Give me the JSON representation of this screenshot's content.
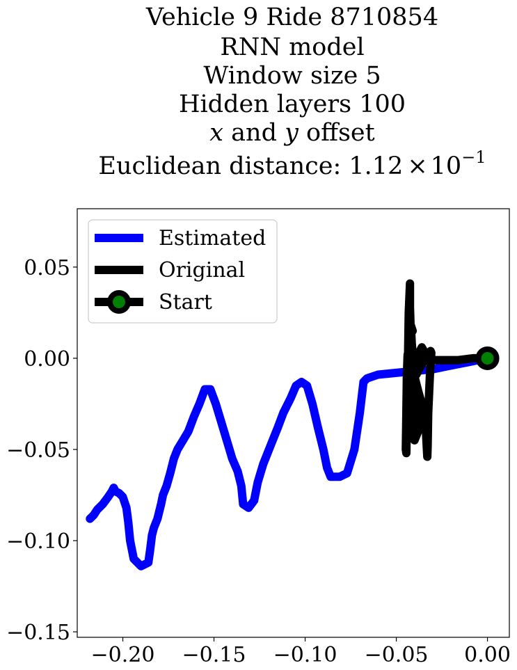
{
  "chart_data": {
    "type": "line",
    "title_lines": [
      {
        "text": "Vehicle 9 Ride 8710854"
      },
      {
        "text": "RNN model"
      },
      {
        "text": "Window size 5"
      },
      {
        "text": "Hidden layers 100"
      },
      {
        "text_var1": "x",
        "text_mid": " and ",
        "text_var2": "y",
        "text_tail": " offset"
      },
      {
        "text": "Euclidean distance: 1.12",
        "times": "×",
        "base": "10",
        "exponent": "−1"
      }
    ],
    "xlim": [
      -0.225,
      0.012
    ],
    "ylim": [
      -0.153,
      0.082
    ],
    "xticks": [
      {
        "value": -0.2,
        "label": "−0.20"
      },
      {
        "value": -0.15,
        "label": "−0.15"
      },
      {
        "value": -0.1,
        "label": "−0.10"
      },
      {
        "value": -0.05,
        "label": "−0.05"
      },
      {
        "value": 0.0,
        "label": "0.00"
      }
    ],
    "yticks": [
      {
        "value": 0.05,
        "label": "0.05"
      },
      {
        "value": 0.0,
        "label": "0.00"
      },
      {
        "value": -0.05,
        "label": "−0.05"
      },
      {
        "value": -0.1,
        "label": "−0.10"
      },
      {
        "value": -0.15,
        "label": "−0.15"
      }
    ],
    "grid": false,
    "legend_position": "top-left",
    "legend": [
      {
        "label": "Estimated",
        "color": "#0000ff",
        "marker": false
      },
      {
        "label": "Original",
        "color": "#000000",
        "marker": false
      },
      {
        "label": "Start",
        "color": "#000000",
        "marker": true,
        "marker_face": "#008000"
      }
    ],
    "series": [
      {
        "name": "Estimated",
        "color": "#0000ff",
        "points": [
          [
            0.0,
            0.0
          ],
          [
            -0.01,
            -0.002
          ],
          [
            -0.02,
            -0.004
          ],
          [
            -0.03,
            -0.006
          ],
          [
            -0.04,
            -0.007
          ],
          [
            -0.05,
            -0.008
          ],
          [
            -0.06,
            -0.009
          ],
          [
            -0.066,
            -0.011
          ],
          [
            -0.068,
            -0.013
          ],
          [
            -0.07,
            -0.03
          ],
          [
            -0.073,
            -0.05
          ],
          [
            -0.077,
            -0.063
          ],
          [
            -0.081,
            -0.065
          ],
          [
            -0.086,
            -0.065
          ],
          [
            -0.088,
            -0.06
          ],
          [
            -0.09,
            -0.05
          ],
          [
            -0.093,
            -0.038
          ],
          [
            -0.096,
            -0.025
          ],
          [
            -0.099,
            -0.015
          ],
          [
            -0.102,
            -0.013
          ],
          [
            -0.105,
            -0.015
          ],
          [
            -0.108,
            -0.022
          ],
          [
            -0.112,
            -0.03
          ],
          [
            -0.115,
            -0.038
          ],
          [
            -0.119,
            -0.048
          ],
          [
            -0.123,
            -0.058
          ],
          [
            -0.126,
            -0.068
          ],
          [
            -0.128,
            -0.078
          ],
          [
            -0.131,
            -0.082
          ],
          [
            -0.134,
            -0.08
          ],
          [
            -0.135,
            -0.07
          ],
          [
            -0.137,
            -0.062
          ],
          [
            -0.14,
            -0.055
          ],
          [
            -0.143,
            -0.045
          ],
          [
            -0.146,
            -0.035
          ],
          [
            -0.149,
            -0.025
          ],
          [
            -0.152,
            -0.017
          ],
          [
            -0.155,
            -0.017
          ],
          [
            -0.158,
            -0.025
          ],
          [
            -0.161,
            -0.032
          ],
          [
            -0.164,
            -0.04
          ],
          [
            -0.167,
            -0.045
          ],
          [
            -0.17,
            -0.05
          ],
          [
            -0.172,
            -0.055
          ],
          [
            -0.174,
            -0.063
          ],
          [
            -0.176,
            -0.07
          ],
          [
            -0.178,
            -0.075
          ],
          [
            -0.179,
            -0.08
          ],
          [
            -0.181,
            -0.088
          ],
          [
            -0.183,
            -0.093
          ],
          [
            -0.184,
            -0.097
          ],
          [
            -0.185,
            -0.105
          ],
          [
            -0.186,
            -0.112
          ],
          [
            -0.19,
            -0.114
          ],
          [
            -0.194,
            -0.11
          ],
          [
            -0.196,
            -0.1
          ],
          [
            -0.197,
            -0.09
          ],
          [
            -0.198,
            -0.082
          ],
          [
            -0.2,
            -0.076
          ],
          [
            -0.202,
            -0.074
          ],
          [
            -0.204,
            -0.073
          ],
          [
            -0.205,
            -0.071
          ],
          [
            -0.206,
            -0.073
          ],
          [
            -0.208,
            -0.076
          ],
          [
            -0.211,
            -0.08
          ],
          [
            -0.214,
            -0.083
          ],
          [
            -0.216,
            -0.086
          ],
          [
            -0.218,
            -0.088
          ]
        ]
      },
      {
        "name": "Original",
        "color": "#000000",
        "points": [
          [
            0.0,
            0.0
          ],
          [
            -0.008,
            0.0
          ],
          [
            -0.016,
            -0.001
          ],
          [
            -0.024,
            -0.001
          ],
          [
            -0.032,
            -0.001
          ],
          [
            -0.036,
            0.006
          ],
          [
            -0.038,
            0.002
          ],
          [
            -0.04,
            -0.003
          ],
          [
            -0.041,
            -0.002
          ],
          [
            -0.042,
            0.012
          ],
          [
            -0.0425,
            0.028
          ],
          [
            -0.0425,
            0.041
          ],
          [
            -0.0432,
            0.025
          ],
          [
            -0.0435,
            0.005
          ],
          [
            -0.0438,
            -0.015
          ],
          [
            -0.0442,
            -0.035
          ],
          [
            -0.0445,
            -0.052
          ],
          [
            -0.0448,
            -0.05
          ],
          [
            -0.0445,
            -0.03
          ],
          [
            -0.0442,
            -0.01
          ],
          [
            -0.0438,
            0.002
          ],
          [
            -0.0432,
            0.001
          ],
          [
            -0.0428,
            -0.01
          ],
          [
            -0.0422,
            -0.025
          ],
          [
            -0.041,
            -0.035
          ],
          [
            -0.04,
            -0.045
          ],
          [
            -0.038,
            -0.04
          ],
          [
            -0.037,
            -0.032
          ],
          [
            -0.038,
            -0.022
          ],
          [
            -0.04,
            -0.012
          ],
          [
            -0.0415,
            -0.005
          ],
          [
            -0.0418,
            -0.002
          ],
          [
            -0.0412,
            -0.004
          ],
          [
            -0.04,
            -0.01
          ],
          [
            -0.038,
            -0.018
          ],
          [
            -0.036,
            -0.025
          ],
          [
            -0.034,
            -0.035
          ],
          [
            -0.0335,
            -0.045
          ],
          [
            -0.033,
            -0.054
          ],
          [
            -0.0328,
            -0.048
          ],
          [
            -0.0325,
            -0.03
          ],
          [
            -0.0315,
            -0.008
          ],
          [
            -0.0308,
            0.003
          ],
          [
            -0.0312,
            0.004
          ],
          [
            -0.034,
            0.0
          ],
          [
            -0.037,
            -0.005
          ],
          [
            -0.039,
            -0.009
          ],
          [
            -0.0405,
            -0.003
          ],
          [
            -0.0415,
            0.008
          ],
          [
            -0.042,
            0.018
          ],
          [
            -0.041,
            0.015
          ]
        ]
      }
    ],
    "start": {
      "x": 0.0,
      "y": 0.0
    }
  }
}
